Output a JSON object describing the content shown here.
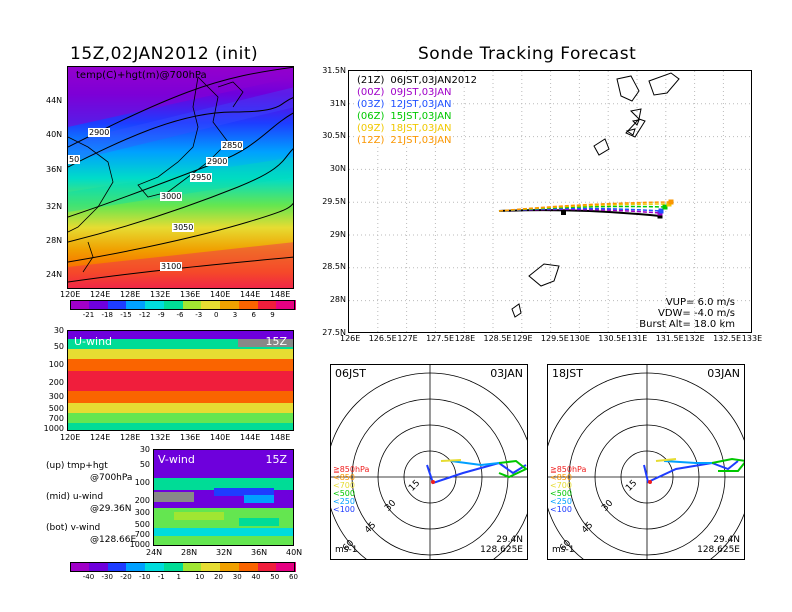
{
  "left": {
    "title": "15Z,02JAN2012 (init)",
    "map_label": "temp(C)+hgt(m)@700hPa",
    "lat_ticks": [
      "44N",
      "40N",
      "36N",
      "32N",
      "28N",
      "24N"
    ],
    "lon_ticks": [
      "120E",
      "124E",
      "128E",
      "132E",
      "136E",
      "140E",
      "144E",
      "148E"
    ],
    "contours": [
      "2900",
      "2850",
      "2900",
      "2950",
      "3000",
      "3050",
      "3100",
      "50"
    ],
    "temp_colorbar": {
      "colors": [
        "#a000c8",
        "#6e00dc",
        "#1e3cff",
        "#00a0ff",
        "#00dcdc",
        "#00dc96",
        "#a0e632",
        "#e6dc32",
        "#f0a000",
        "#fa6400",
        "#f01e3c",
        "#e60082"
      ],
      "labels": [
        "-21",
        "-18",
        "-15",
        "-12",
        "-9",
        "-6",
        "-3",
        "0",
        "3",
        "6",
        "9"
      ]
    },
    "uwind": {
      "label": "U-wind",
      "time": "15Z",
      "p_ticks": [
        "30",
        "50",
        "100",
        "200",
        "300",
        "500",
        "700",
        "1000"
      ],
      "lon_ticks": [
        "120E",
        "124E",
        "128E",
        "132E",
        "136E",
        "140E",
        "144E",
        "148E"
      ]
    },
    "vwind": {
      "label": "V-wind",
      "time": "15Z",
      "p_ticks": [
        "30",
        "50",
        "100",
        "200",
        "300",
        "500",
        "700",
        "1000"
      ],
      "lat_ticks": [
        "24N",
        "28N",
        "32N",
        "36N",
        "40N"
      ]
    },
    "legend": {
      "up1": "(up) tmp+hgt",
      "up2": "@700hPa",
      "mid1": "(mid) u-wind",
      "mid2": "@29.36N",
      "bot1": "(bot) v-wind",
      "bot2": "@128.66E"
    },
    "wind_colorbar": {
      "colors": [
        "#a000c8",
        "#6e00dc",
        "#1e3cff",
        "#00a0ff",
        "#00dcdc",
        "#00dc96",
        "#a0e632",
        "#e6dc32",
        "#f0a000",
        "#fa6400",
        "#f01e3c",
        "#e60082"
      ],
      "labels": [
        "-40",
        "-30",
        "-20",
        "-10",
        "-1",
        "1",
        "10",
        "20",
        "30",
        "40",
        "50",
        "60"
      ]
    }
  },
  "right": {
    "title": "Sonde Tracking Forecast",
    "lat_ticks": [
      "31.5N",
      "31N",
      "30.5N",
      "30N",
      "29.5N",
      "29N",
      "28.5N",
      "28N",
      "27.5N"
    ],
    "lon_ticks": [
      "126E",
      "126.5E",
      "127E",
      "127.5E",
      "128E",
      "128.5E",
      "129E",
      "129.5E",
      "130E",
      "130.5E",
      "131E",
      "131.5E",
      "132E",
      "132.5E",
      "133E"
    ],
    "runs": [
      {
        "init": "(21Z)",
        "valid": "06JST,03JAN2012",
        "color": "#000000"
      },
      {
        "init": "(00Z)",
        "valid": "09JST,03JAN",
        "color": "#a000c8"
      },
      {
        "init": "(03Z)",
        "valid": "12JST,03JAN",
        "color": "#1e50ff"
      },
      {
        "init": "(06Z)",
        "valid": "15JST,03JAN",
        "color": "#00c800"
      },
      {
        "init": "(09Z)",
        "valid": "18JST,03JAN",
        "color": "#f0c800"
      },
      {
        "init": "(12Z)",
        "valid": "21JST,03JAN",
        "color": "#fa9600"
      }
    ],
    "params": {
      "vup": "VUP= 6.0 m/s",
      "vdw": "VDW= -4.0 m/s",
      "burst": "Burst Alt= 18.0 km"
    }
  },
  "hodo": [
    {
      "time": "06JST",
      "date": "03JAN",
      "rings": [
        "15",
        "30",
        "45",
        "60"
      ],
      "levels": [
        "≧850hPa",
        "<850",
        "<700",
        "<500",
        "<250",
        "<100"
      ],
      "level_colors": [
        "#f01e1e",
        "#fa9600",
        "#e6dc32",
        "#00c800",
        "#00a0ff",
        "#1e3cff"
      ],
      "lat": "29.4N",
      "lon": "128.625E",
      "unit": "ms-1"
    },
    {
      "time": "18JST",
      "date": "03JAN",
      "rings": [
        "15",
        "30",
        "45",
        "60"
      ],
      "levels": [
        "≧850hPa",
        "<850",
        "<700",
        "<500",
        "<250",
        "<100"
      ],
      "level_colors": [
        "#f01e1e",
        "#fa9600",
        "#e6dc32",
        "#00c800",
        "#00a0ff",
        "#1e3cff"
      ],
      "lat": "29.4N",
      "lon": "128.625E",
      "unit": "ms-1"
    }
  ]
}
